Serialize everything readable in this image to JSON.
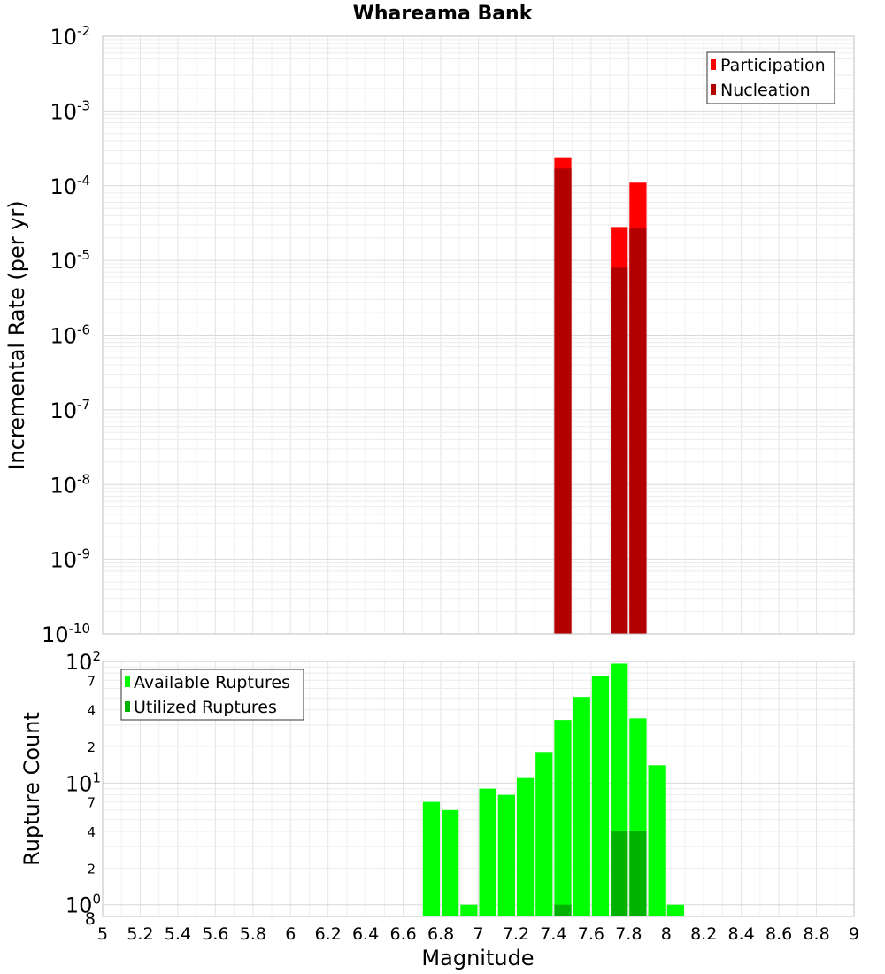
{
  "chart_data": [
    {
      "type": "bar",
      "title": "Whareama Bank",
      "xlabel": "",
      "ylabel": "Incremental Rate (per yr)",
      "yscale": "log",
      "ylim": [
        1e-10,
        0.01
      ],
      "xlim": [
        5,
        9
      ],
      "grid": true,
      "legend_position": "top-right",
      "bar_width": 0.1,
      "y_ticks": [
        {
          "value": 0.01,
          "base": "10",
          "exp": "-2"
        },
        {
          "value": 0.001,
          "base": "10",
          "exp": "-3"
        },
        {
          "value": 0.0001,
          "base": "10",
          "exp": "-4"
        },
        {
          "value": 1e-05,
          "base": "10",
          "exp": "-5"
        },
        {
          "value": 1e-06,
          "base": "10",
          "exp": "-6"
        },
        {
          "value": 1e-07,
          "base": "10",
          "exp": "-7"
        },
        {
          "value": 1e-08,
          "base": "10",
          "exp": "-8"
        },
        {
          "value": 1e-09,
          "base": "10",
          "exp": "-9"
        },
        {
          "value": 1e-10,
          "base": "10",
          "exp": "-10"
        }
      ],
      "series": [
        {
          "name": "Participation",
          "color": "#ff0000",
          "points": [
            {
              "x": 7.45,
              "y": 0.00024
            },
            {
              "x": 7.75,
              "y": 2.8e-05
            },
            {
              "x": 7.85,
              "y": 0.00011
            }
          ]
        },
        {
          "name": "Nucleation",
          "color": "#b20000",
          "points": [
            {
              "x": 7.45,
              "y": 0.00017
            },
            {
              "x": 7.75,
              "y": 8e-06
            },
            {
              "x": 7.85,
              "y": 2.7e-05
            }
          ]
        }
      ]
    },
    {
      "type": "bar",
      "title": "",
      "xlabel": "Magnitude",
      "ylabel": "Rupture Count",
      "yscale": "log",
      "ylim": [
        0.8,
        100
      ],
      "xlim": [
        5,
        9
      ],
      "grid": true,
      "legend_position": "top-left",
      "bar_width": 0.1,
      "x_ticks": [
        "5",
        "5.2",
        "5.4",
        "5.6",
        "5.8",
        "6",
        "6.2",
        "6.4",
        "6.6",
        "6.8",
        "7",
        "7.2",
        "7.4",
        "7.6",
        "7.8",
        "8",
        "8.2",
        "8.4",
        "8.6",
        "8.8",
        "9"
      ],
      "y_major_ticks": [
        {
          "value": 100,
          "base": "10",
          "exp": "2"
        },
        {
          "value": 10,
          "base": "10",
          "exp": "1"
        },
        {
          "value": 1,
          "base": "10",
          "exp": "0"
        }
      ],
      "y_minor_ticks": [
        {
          "value": 70,
          "label": "7"
        },
        {
          "value": 40,
          "label": "4"
        },
        {
          "value": 20,
          "label": "2"
        },
        {
          "value": 7,
          "label": "7"
        },
        {
          "value": 4,
          "label": "4"
        },
        {
          "value": 2,
          "label": "2"
        },
        {
          "value": 0.8,
          "label": "8"
        }
      ],
      "series": [
        {
          "name": "Available Ruptures",
          "color": "#00ff00",
          "points": [
            {
              "x": 6.75,
              "y": 7
            },
            {
              "x": 6.85,
              "y": 6
            },
            {
              "x": 6.95,
              "y": 1
            },
            {
              "x": 7.05,
              "y": 9
            },
            {
              "x": 7.15,
              "y": 8
            },
            {
              "x": 7.25,
              "y": 11
            },
            {
              "x": 7.35,
              "y": 18
            },
            {
              "x": 7.45,
              "y": 33
            },
            {
              "x": 7.55,
              "y": 51
            },
            {
              "x": 7.65,
              "y": 76
            },
            {
              "x": 7.75,
              "y": 96
            },
            {
              "x": 7.85,
              "y": 34
            },
            {
              "x": 7.95,
              "y": 14
            },
            {
              "x": 8.05,
              "y": 1
            }
          ]
        },
        {
          "name": "Utilized Ruptures",
          "color": "#00b200",
          "points": [
            {
              "x": 7.45,
              "y": 1
            },
            {
              "x": 7.75,
              "y": 4
            },
            {
              "x": 7.85,
              "y": 4
            }
          ]
        }
      ]
    }
  ]
}
